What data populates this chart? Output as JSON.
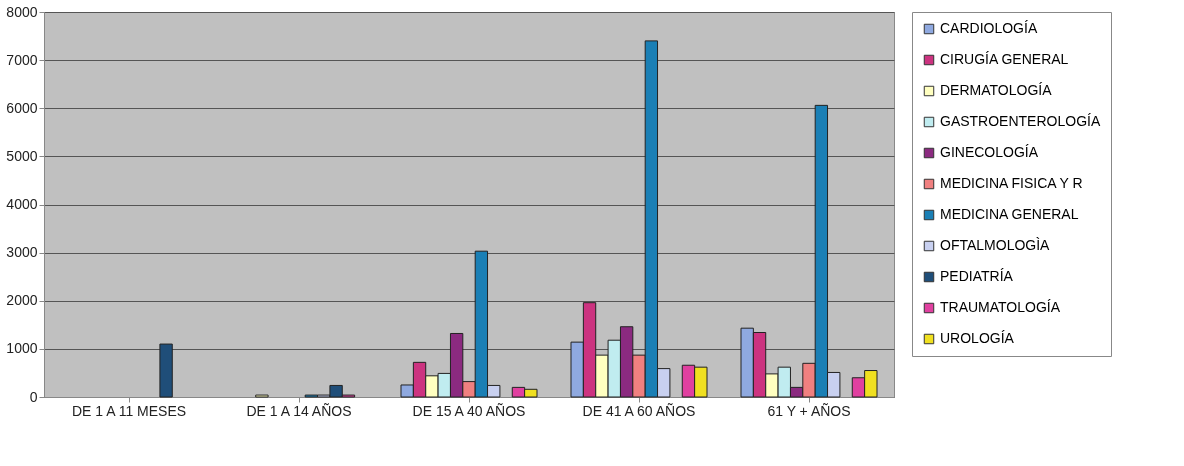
{
  "chart_data": {
    "type": "bar",
    "categories": [
      "DE 1 A 11 MESES",
      "DE 1 A 14 AÑOS",
      "DE 15 A 40 AÑOS",
      "DE 41 A 60 AÑOS",
      "61 Y + AÑOS"
    ],
    "series": [
      {
        "name": "CARDIOLOGÍA",
        "color": "#8fa9e0",
        "values": [
          null,
          null,
          250,
          1140,
          1430
        ]
      },
      {
        "name": "CIRUGÍA GENERAL",
        "color": "#cc3380",
        "values": [
          null,
          null,
          720,
          1960,
          1340
        ]
      },
      {
        "name": "DERMATOLOGÍA",
        "color": "#ffffc0",
        "values": [
          null,
          40,
          440,
          870,
          480
        ]
      },
      {
        "name": "GASTROENTEROLOGÍA",
        "color": "#c0ecf0",
        "values": [
          null,
          null,
          490,
          1180,
          620
        ]
      },
      {
        "name": "GINECOLOGÍA",
        "color": "#8b2a80",
        "values": [
          null,
          null,
          1320,
          1460,
          200
        ]
      },
      {
        "name": "MEDICINA FISICA Y R",
        "color": "#f08080",
        "values": [
          null,
          null,
          320,
          870,
          700
        ]
      },
      {
        "name": "MEDICINA GENERAL",
        "color": "#1a7fb5",
        "values": [
          null,
          40,
          3030,
          7400,
          6060
        ]
      },
      {
        "name": "OFTALMOLOGÌA",
        "color": "#c8d0f0",
        "values": [
          null,
          40,
          240,
          590,
          510
        ]
      },
      {
        "name": "PEDIATRÍA",
        "color": "#1f4e79",
        "values": [
          1100,
          240,
          null,
          null,
          null
        ]
      },
      {
        "name": "TRAUMATOLOGÍA",
        "color": "#e040a0",
        "values": [
          null,
          40,
          200,
          660,
          400
        ]
      },
      {
        "name": "UROLOGÍA",
        "color": "#f0e020",
        "values": [
          null,
          null,
          160,
          620,
          550
        ]
      }
    ],
    "ylim": [
      0,
      8000
    ],
    "yticks": [
      0,
      1000,
      2000,
      3000,
      4000,
      5000,
      6000,
      7000,
      8000
    ],
    "grid": "y",
    "legend": "right"
  }
}
